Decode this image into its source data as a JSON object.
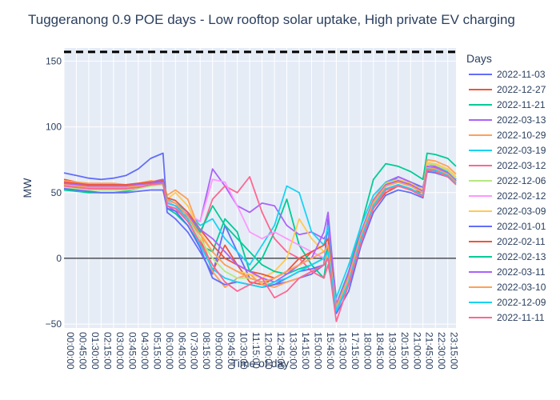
{
  "chart_data": {
    "type": "line",
    "title": "Tuggeranong 0.9 POE days - Low rooftop solar uptake, High private EV charging",
    "xlabel": "Time of day",
    "ylabel": "MW",
    "ylim": [
      -53,
      160
    ],
    "yticks": [
      -50,
      0,
      50,
      100,
      150
    ],
    "xtick_labels": [
      "00:00:00",
      "00:45:00",
      "01:30:00",
      "02:15:00",
      "03:00:00",
      "03:45:00",
      "04:30:00",
      "05:15:00",
      "06:00:00",
      "06:45:00",
      "07:30:00",
      "08:15:00",
      "09:00:00",
      "09:45:00",
      "10:30:00",
      "11:15:00",
      "12:00:00",
      "12:45:00",
      "13:30:00",
      "14:15:00",
      "15:00:00",
      "15:45:00",
      "16:30:00",
      "17:15:00",
      "18:00:00",
      "18:45:00",
      "19:30:00",
      "20:15:00",
      "21:00:00",
      "21:45:00",
      "22:30:00",
      "23:15:00"
    ],
    "reference_line": {
      "value": 157,
      "style": "dashed",
      "color": "#000000"
    },
    "zero_line": true,
    "grid": true,
    "plot_bg": "#e5ecf6",
    "legend": {
      "title": "Days",
      "placement": "right"
    },
    "x_hours": [
      0,
      0.75,
      1.5,
      2.25,
      3,
      3.75,
      4.5,
      5.25,
      6,
      6.25,
      6.75,
      7.5,
      8.25,
      9,
      9.75,
      10.5,
      11.25,
      12,
      12.75,
      13.5,
      14.25,
      15,
      15.75,
      16,
      16.5,
      17.25,
      18,
      18.75,
      19.5,
      20.25,
      21,
      21.75,
      22,
      22.5,
      23.25,
      23.75
    ],
    "series": [
      {
        "name": "2022-11-03",
        "color": "#636efa",
        "values": [
          65,
          63,
          61,
          60,
          61,
          63,
          68,
          76,
          80,
          35,
          30,
          20,
          5,
          -12,
          25,
          5,
          -15,
          -18,
          -20,
          -18,
          -15,
          -12,
          -5,
          30,
          -40,
          -20,
          10,
          40,
          55,
          62,
          58,
          54,
          70,
          68,
          65,
          60
        ]
      },
      {
        "name": "2022-12-27",
        "color": "#ef553b",
        "values": [
          60,
          58,
          56,
          55,
          55,
          54,
          55,
          56,
          56,
          42,
          40,
          30,
          15,
          -10,
          10,
          -5,
          -18,
          -20,
          -15,
          -10,
          -5,
          5,
          0,
          10,
          -40,
          -15,
          15,
          38,
          50,
          55,
          52,
          50,
          68,
          67,
          63,
          58
        ]
      },
      {
        "name": "2022-11-21",
        "color": "#00cc96",
        "values": [
          52,
          51,
          50,
          50,
          50,
          51,
          53,
          58,
          60,
          38,
          34,
          25,
          10,
          5,
          30,
          20,
          -10,
          0,
          20,
          45,
          10,
          -5,
          -15,
          8,
          -35,
          -10,
          25,
          60,
          72,
          70,
          66,
          60,
          80,
          79,
          76,
          70
        ]
      },
      {
        "name": "2022-03-13",
        "color": "#ab63fa",
        "values": [
          58,
          57,
          56,
          56,
          56,
          55,
          56,
          58,
          60,
          40,
          36,
          32,
          28,
          68,
          55,
          40,
          35,
          42,
          40,
          25,
          18,
          20,
          15,
          20,
          -38,
          -10,
          20,
          45,
          58,
          62,
          58,
          52,
          72,
          70,
          66,
          60
        ]
      },
      {
        "name": "2022-10-29",
        "color": "#ffa15a",
        "values": [
          59,
          58,
          57,
          57,
          57,
          56,
          57,
          59,
          58,
          48,
          52,
          45,
          20,
          -10,
          -22,
          -15,
          -12,
          -20,
          -22,
          -18,
          -15,
          -10,
          -5,
          5,
          -38,
          -20,
          15,
          42,
          55,
          58,
          55,
          50,
          75,
          74,
          70,
          64
        ]
      },
      {
        "name": "2022-03-19",
        "color": "#19d3f3",
        "values": [
          56,
          55,
          55,
          54,
          54,
          54,
          55,
          57,
          58,
          45,
          42,
          35,
          25,
          30,
          15,
          5,
          -5,
          10,
          25,
          55,
          50,
          20,
          10,
          25,
          -30,
          -5,
          25,
          48,
          58,
          60,
          57,
          52,
          70,
          69,
          66,
          60
        ]
      },
      {
        "name": "2022-03-12",
        "color": "#ff6692",
        "values": [
          57,
          56,
          55,
          55,
          55,
          55,
          56,
          57,
          57,
          40,
          38,
          30,
          18,
          45,
          55,
          50,
          62,
          35,
          15,
          5,
          0,
          -10,
          -15,
          -5,
          -35,
          -15,
          18,
          42,
          55,
          58,
          55,
          50,
          69,
          68,
          65,
          59
        ]
      },
      {
        "name": "2022-12-06",
        "color": "#b6e880",
        "values": [
          54,
          53,
          52,
          52,
          52,
          52,
          53,
          55,
          56,
          42,
          40,
          30,
          15,
          0,
          -10,
          -15,
          -15,
          -18,
          -20,
          -15,
          -10,
          -5,
          0,
          5,
          -38,
          -15,
          18,
          42,
          55,
          58,
          55,
          50,
          72,
          71,
          67,
          61
        ]
      },
      {
        "name": "2022-02-12",
        "color": "#ff97ff",
        "values": [
          57,
          56,
          55,
          55,
          55,
          55,
          56,
          57,
          58,
          43,
          40,
          34,
          28,
          60,
          58,
          40,
          20,
          15,
          20,
          15,
          10,
          5,
          0,
          12,
          -36,
          -12,
          20,
          44,
          56,
          59,
          56,
          51,
          70,
          69,
          65,
          59
        ]
      },
      {
        "name": "2022-03-09",
        "color": "#fecb52",
        "values": [
          55,
          54,
          53,
          53,
          53,
          53,
          54,
          56,
          57,
          45,
          50,
          40,
          20,
          5,
          -5,
          -10,
          -12,
          -15,
          -10,
          0,
          30,
          15,
          5,
          10,
          -36,
          -12,
          20,
          45,
          57,
          60,
          57,
          52,
          73,
          72,
          68,
          62
        ]
      },
      {
        "name": "2022-01-01",
        "color": "#636efa",
        "values": [
          53,
          52,
          51,
          50,
          50,
          50,
          51,
          52,
          52,
          38,
          36,
          25,
          8,
          -15,
          -20,
          -18,
          -20,
          -22,
          -20,
          -15,
          -10,
          -8,
          -5,
          0,
          -42,
          -25,
          10,
          35,
          48,
          52,
          50,
          46,
          66,
          65,
          62,
          57
        ]
      },
      {
        "name": "2022-02-11",
        "color": "#ef553b",
        "values": [
          58,
          57,
          56,
          56,
          56,
          56,
          57,
          58,
          59,
          46,
          44,
          35,
          22,
          10,
          0,
          -5,
          -10,
          -12,
          -15,
          -10,
          0,
          5,
          10,
          15,
          -36,
          -12,
          20,
          44,
          56,
          59,
          56,
          51,
          70,
          69,
          65,
          59
        ]
      },
      {
        "name": "2022-02-13",
        "color": "#00cc96",
        "values": [
          56,
          55,
          54,
          54,
          54,
          54,
          55,
          57,
          58,
          44,
          42,
          32,
          20,
          40,
          25,
          15,
          5,
          -5,
          -10,
          -12,
          -8,
          -5,
          0,
          8,
          -37,
          -14,
          18,
          43,
          55,
          58,
          55,
          50,
          69,
          68,
          64,
          58
        ]
      },
      {
        "name": "2022-03-11",
        "color": "#ab63fa",
        "values": [
          57,
          56,
          55,
          55,
          55,
          55,
          56,
          57,
          58,
          42,
          40,
          33,
          22,
          15,
          5,
          -5,
          -10,
          -15,
          -18,
          -12,
          -5,
          0,
          20,
          35,
          -35,
          -12,
          20,
          44,
          56,
          59,
          56,
          51,
          70,
          69,
          65,
          59
        ]
      },
      {
        "name": "2022-03-10",
        "color": "#ffa15a",
        "values": [
          56,
          55,
          54,
          54,
          54,
          54,
          55,
          56,
          57,
          44,
          42,
          32,
          18,
          5,
          -5,
          -10,
          -15,
          -18,
          -15,
          -10,
          -5,
          0,
          5,
          10,
          -37,
          -14,
          18,
          43,
          55,
          58,
          55,
          50,
          69,
          68,
          64,
          58
        ]
      },
      {
        "name": "2022-12-09",
        "color": "#19d3f3",
        "values": [
          55,
          54,
          53,
          53,
          53,
          53,
          54,
          56,
          57,
          42,
          40,
          30,
          10,
          -8,
          -15,
          -18,
          -20,
          -22,
          -18,
          -15,
          -10,
          -5,
          0,
          5,
          -40,
          -18,
          15,
          40,
          53,
          56,
          53,
          48,
          68,
          67,
          63,
          57
        ]
      },
      {
        "name": "2022-11-11",
        "color": "#ff6692",
        "values": [
          55,
          54,
          53,
          53,
          53,
          53,
          54,
          56,
          57,
          40,
          38,
          28,
          12,
          -5,
          -18,
          -25,
          -20,
          -15,
          -30,
          -25,
          -15,
          -10,
          -5,
          0,
          -48,
          -20,
          12,
          38,
          52,
          55,
          52,
          47,
          67,
          66,
          62,
          56
        ]
      }
    ]
  }
}
